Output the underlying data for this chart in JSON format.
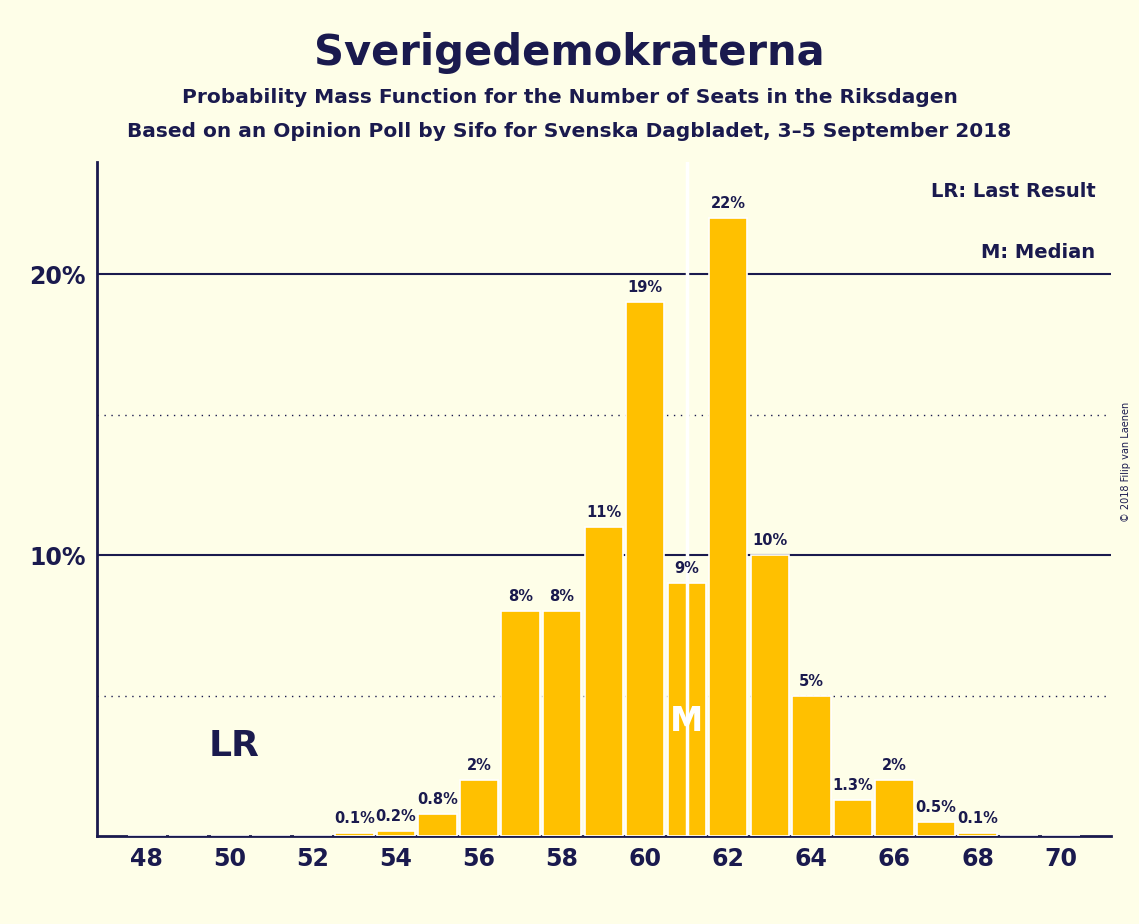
{
  "title": "Sverigedemokraterna",
  "subtitle1": "Probability Mass Function for the Number of Seats in the Riksdagen",
  "subtitle2": "Based on an Opinion Poll by Sifo for Svenska Dagbladet, 3–5 September 2018",
  "copyright": "© 2018 Filip van Laenen",
  "legend_lr": "LR: Last Result",
  "legend_m": "M: Median",
  "seats": [
    48,
    49,
    50,
    51,
    52,
    53,
    54,
    55,
    56,
    57,
    58,
    59,
    60,
    61,
    62,
    63,
    64,
    65,
    66,
    67,
    68,
    69,
    70
  ],
  "probabilities": [
    0.0,
    0.0,
    0.0,
    0.0,
    0.0,
    0.1,
    0.2,
    0.8,
    2.0,
    8.0,
    8.0,
    11.0,
    19.0,
    9.0,
    22.0,
    10.0,
    5.0,
    1.3,
    2.0,
    0.5,
    0.1,
    0.0,
    0.0
  ],
  "bar_color": "#FFC000",
  "bar_edge_color": "#FFFFFF",
  "background_color": "#FEFEE8",
  "text_color": "#1a1a4e",
  "LR_seat": 49,
  "Median_seat": 61,
  "ylim": [
    0,
    24
  ],
  "solid_gridlines": [
    10.0,
    20.0
  ],
  "dotted_gridlines": [
    5.0,
    15.0
  ],
  "xlabel_seats": [
    48,
    50,
    52,
    54,
    56,
    58,
    60,
    62,
    64,
    66,
    68,
    70
  ],
  "ytick_positions": [
    10.0,
    20.0
  ],
  "ytick_labels": [
    "10%",
    "20%"
  ]
}
